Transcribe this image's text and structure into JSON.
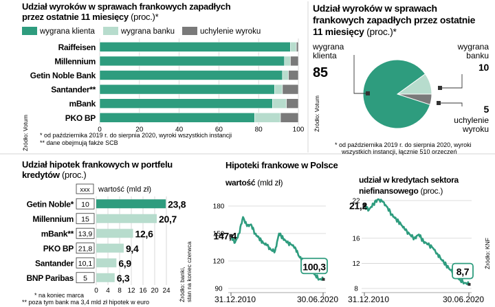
{
  "colors": {
    "accent": "#2e9c7e",
    "light": "#b7dccd",
    "gray": "#7a7a7a",
    "grid": "#d0d0d0"
  },
  "panel1": {
    "title_line1": "Udział wyroków w sprawach frankowych zapadłych",
    "title_line2_bold": "przez ostatnie 11 miesięcy",
    "title_line2_rest": " (proc.)*",
    "source": "Źródło: Votum",
    "footnote1": "* od października 2019 r. do sierpnia 2020, wyroki wszystkich instancji",
    "footnote2": "** dane obejmują fakże SCB"
  },
  "panel2": {
    "title_line1": "Udział wyroków w sprawach",
    "title_line2": "frankowych zapadłych przez ostatnie",
    "title_line3_bold": "11 miesięcy",
    "title_line3_rest": " (proc.)*",
    "source": "Źródło: Votum",
    "label_client": "wygrana\nklienta",
    "value_client": "85",
    "label_bank": "wygrana\nbanku",
    "value_bank": "10",
    "label_dismiss": "uchylenie\nwyroku",
    "value_dismiss": "5",
    "footnote1": "* od października 2019 r. do sierpnia 2020, wyroki",
    "footnote2": "wszystkich instancji, łącznie 510 orzeczeń"
  },
  "panel3": {
    "title_line1": "Udział hipotek frankowych w portfelu",
    "title_line2_bold": "kredytów",
    "title_line2_rest": " (proc.)",
    "legend_box": "xxx",
    "legend_label": "wartość (mld zł)",
    "footnote1": "* na koniec marca",
    "footnote2": "** poza tym bank ma 3,4 mld zł hipotek w euro",
    "source": "Źródło: banki,\nstan na koniec czerwca"
  },
  "panel4": {
    "title": "Hipoteki frankowe w Polsce",
    "sub1_bold": "wartość",
    "sub1_rest": " (mld zł)",
    "sub2_line1": "udział w kredytach sektora",
    "sub2_line2_bold": "niefinansowego",
    "sub2_line2_rest": " (proc.)",
    "source": "Źródło: KNF"
  },
  "chart_data": [
    {
      "type": "bar",
      "stacked": true,
      "orientation": "horizontal",
      "categories": [
        "Raiffeisen",
        "Millennium",
        "Getin Noble Bank",
        "Santander**",
        "mBank",
        "PKO BP"
      ],
      "series": [
        {
          "name": "wygrana klienta",
          "values": [
            96,
            93,
            92,
            88,
            87,
            78
          ]
        },
        {
          "name": "wygrana banku",
          "values": [
            3,
            3,
            3,
            4,
            7,
            13
          ]
        },
        {
          "name": "uchylenie wyroku",
          "values": [
            1,
            4,
            5,
            8,
            6,
            9
          ]
        }
      ],
      "xlim": [
        0,
        100
      ],
      "xticks": [
        "0",
        "20",
        "40",
        "60",
        "80",
        "100"
      ],
      "legend": "top"
    },
    {
      "type": "pie",
      "labels": [
        "wygrana klienta",
        "wygrana banku",
        "uchylenie wyroku"
      ],
      "values": [
        85,
        10,
        5
      ]
    },
    {
      "type": "bar",
      "orientation": "horizontal",
      "categories": [
        "Getin Noble*",
        "Millennium",
        "mBank**",
        "PKO BP",
        "Santander",
        "BNP Paribas"
      ],
      "values": [
        23.8,
        20.7,
        12.6,
        9.4,
        6.9,
        6.3
      ],
      "value_labels": [
        "23,8",
        "20,7",
        "12,6",
        "9,4",
        "6,9",
        "6,3"
      ],
      "box_values": [
        "10",
        "15",
        "13,9",
        "21,8",
        "10,1",
        "5"
      ],
      "xlim": [
        0,
        24
      ],
      "xticks": [
        "0",
        "4",
        "8",
        "12",
        "16",
        "20",
        "24"
      ]
    },
    {
      "type": "line",
      "x": [
        "31.12.2010",
        "2011-04",
        "2011-06",
        "2011-08",
        "2011-10",
        "2011-12",
        "2012-06",
        "2012-12",
        "2013-06",
        "2013-12",
        "2014-06",
        "2014-12",
        "2015-01",
        "2015-06",
        "2015-12",
        "2016-06",
        "2016-12",
        "2017-06",
        "2017-12",
        "2018-06",
        "2018-12",
        "2019-06",
        "2019-12",
        "30.06.2020"
      ],
      "values": [
        147.4,
        140,
        150,
        168,
        158,
        160,
        150,
        145,
        140,
        137,
        132,
        131,
        150,
        145,
        140,
        138,
        135,
        125,
        120,
        115,
        110,
        105,
        100,
        100.3
      ],
      "start_label": "147,4",
      "end_label": "100,3",
      "ylim": [
        90,
        180
      ],
      "yticks": [
        "90",
        "120",
        "150",
        "180"
      ],
      "xticklabels": [
        "31.12.2010",
        "30.06.2020"
      ]
    },
    {
      "type": "line",
      "x": [
        "31.12.2010",
        "2011-04",
        "2011-06",
        "2011-08",
        "2011-10",
        "2011-12",
        "2012-06",
        "2012-12",
        "2013-06",
        "2013-12",
        "2014-06",
        "2014-12",
        "2015-01",
        "2015-06",
        "2015-12",
        "2016-06",
        "2016-12",
        "2017-06",
        "2017-12",
        "2018-06",
        "2018-12",
        "2019-06",
        "2019-12",
        "30.06.2020"
      ],
      "values": [
        21.2,
        20.5,
        21.5,
        22.2,
        21.8,
        21.0,
        19.8,
        19.0,
        18.3,
        17.3,
        16.6,
        16.0,
        16.6,
        15.5,
        15.0,
        14.5,
        13.6,
        12.6,
        11.7,
        10.9,
        10.1,
        9.4,
        8.9,
        8.7
      ],
      "start_label": "21,2",
      "end_label": "8,7",
      "ylim": [
        8,
        22
      ],
      "yticks": [
        "8",
        "12",
        "16",
        "22"
      ],
      "xticklabels": [
        "31.12.2010",
        "30.06.2020"
      ]
    }
  ]
}
